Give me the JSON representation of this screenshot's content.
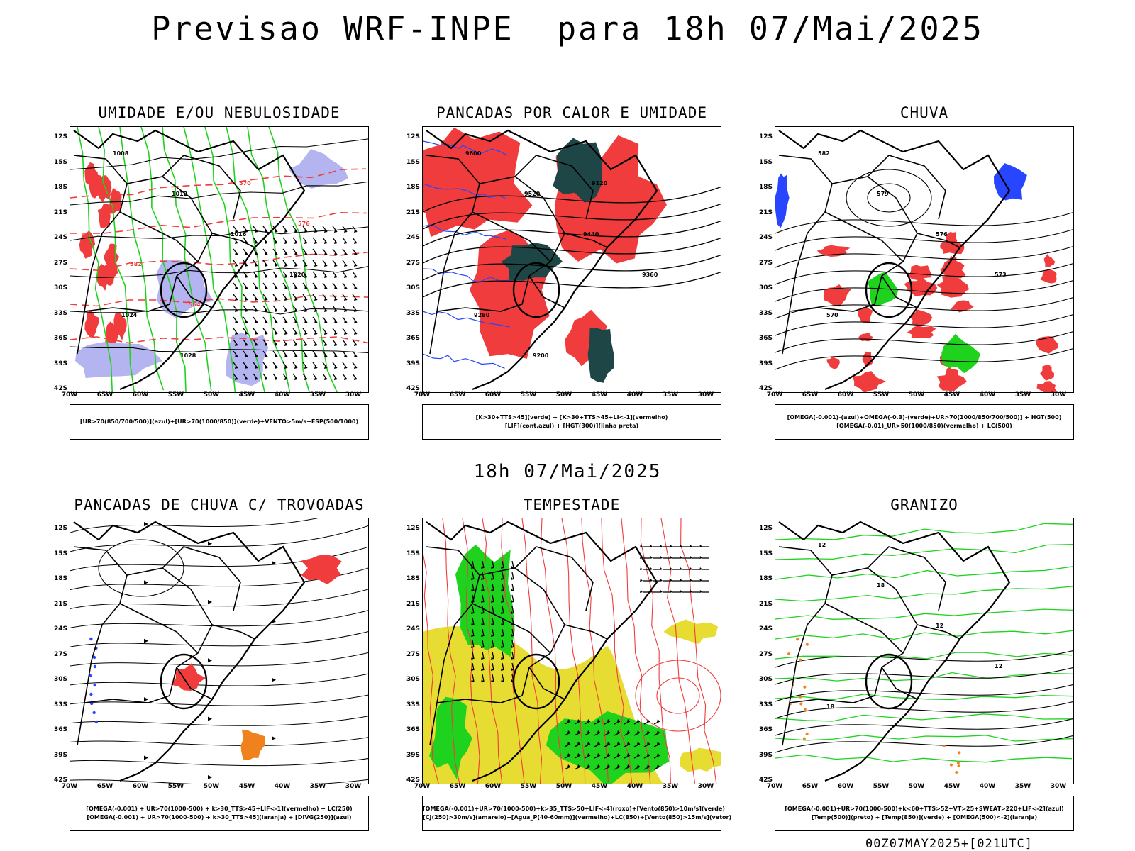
{
  "title": "Previsao WRF-INPE  para 18h 07/Mai/2025",
  "mid_title": "18h 07/Mai/2025",
  "footer": "00Z07MAY2025+[021UTC]",
  "lat_labels": [
    "12S",
    "15S",
    "18S",
    "21S",
    "24S",
    "27S",
    "30S",
    "33S",
    "36S",
    "39S",
    "42S"
  ],
  "lon_labels": [
    "70W",
    "65W",
    "60W",
    "55W",
    "50W",
    "45W",
    "40W",
    "35W",
    "30W"
  ],
  "colors": {
    "red": "#f03c3c",
    "green": "#1ed21e",
    "blue": "#2846ff",
    "lavender": "#b4b4f0",
    "darkteal": "#1e4646",
    "yellow": "#e6dc32",
    "orange": "#f0821e"
  },
  "panels": [
    {
      "title": "UMIDADE E/OU NEBULOSIDADE",
      "legend": [
        "[UR>70(850/700/500)](azul)+[UR>70(1000/850)](verde)+VENTO>5m/s+ESP(500/1000)"
      ],
      "contour_labels": [
        "1008",
        "1012",
        "1016",
        "1020",
        "1024",
        "1028",
        "570",
        "576",
        "582",
        "564"
      ]
    },
    {
      "title": "PANCADAS POR CALOR E UMIDADE",
      "legend": [
        "[K>30+TTS>45](verde) + [K>30+TTS>45+LI<-1](vermelho)",
        "[LIF](cont.azul) + [HGT(300)](linha preta)"
      ],
      "contour_labels": [
        "9600",
        "9520",
        "9440",
        "9360",
        "9280",
        "9200",
        "9120"
      ]
    },
    {
      "title": "CHUVA",
      "legend": [
        "[OMEGA(-0.001)-(azul)+OMEGA(-0.3)-(verde)+UR>70(1000/850/700/500)] + HGT(500)",
        "[OMEGA(-0.01)_UR>50(1000/850)(vermelho) + LC(500)"
      ],
      "contour_labels": [
        "582",
        "579",
        "576",
        "573",
        "570"
      ]
    },
    {
      "title": "PANCADAS DE CHUVA C/ TROVOADAS",
      "legend": [
        "[OMEGA(-0.001) + UR>70(1000-500) + k>30_TTS>45+LIF<-1](vermelho) + LC(250)",
        "[OMEGA(-0.001) + UR>70(1000-500) + k>30_TTS>45](laranja) + [DIVG(250)](azul)"
      ],
      "contour_labels": []
    },
    {
      "title": "TEMPESTADE",
      "legend": [
        "[OMEGA(-0.001)+UR>70(1000-500)+k>35_TTS>50+LIF<-4](roxo)+[Vento(850)>10m/s](verde)",
        "[CJ(250)>30m/s](amarelo)+[Agua_P(40-60mm)](vermelho)+LC(850)+[Vento(850)>15m/s](vetor)"
      ],
      "contour_labels": []
    },
    {
      "title": "GRANIZO",
      "legend": [
        "[OMEGA(-0.001)+UR>70(1000-500)+k<60+TTS>52+VT>25+SWEAT>220+LIF<-2](azul)",
        "[Temp(500)](preto) + [Temp(850)](verde) + [OMEGA(500)<-2](laranja)"
      ],
      "contour_labels": [
        "12",
        "18",
        "12",
        "12",
        "18"
      ]
    }
  ]
}
